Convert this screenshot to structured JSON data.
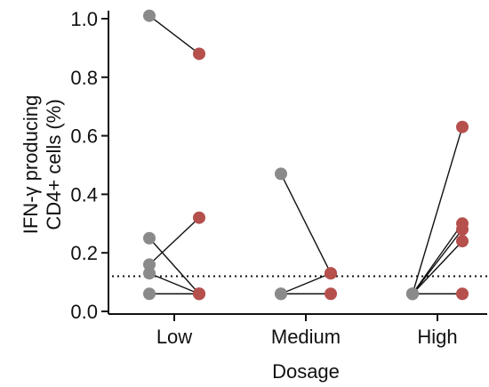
{
  "chart_data": {
    "type": "scatter",
    "subtype": "paired-dot-plot",
    "xlabel": "Dosage",
    "ylabel_lines": [
      "IFN-γ producing",
      "CD4+ cells (%)"
    ],
    "categories": [
      "Low",
      "Medium",
      "High"
    ],
    "ylim": [
      0.0,
      1.0
    ],
    "yticks": [
      "0.0",
      "0.2",
      "0.4",
      "0.6",
      "0.8",
      "1.0"
    ],
    "threshold": 0.12,
    "threshold_style": "dotted",
    "grid": false,
    "colors": {
      "before": "#8a8a8a",
      "after": "#b5504d",
      "line": "#111111"
    },
    "groups": [
      {
        "category": "Low",
        "pairs": [
          {
            "before": 1.01,
            "after": 0.88
          },
          {
            "before": 0.25,
            "after": 0.06
          },
          {
            "before": 0.16,
            "after": 0.32
          },
          {
            "before": 0.13,
            "after": 0.06
          },
          {
            "before": 0.06,
            "after": 0.06
          }
        ]
      },
      {
        "category": "Medium",
        "pairs": [
          {
            "before": 0.47,
            "after": 0.13
          },
          {
            "before": 0.06,
            "after": 0.13
          },
          {
            "before": 0.06,
            "after": 0.06
          }
        ]
      },
      {
        "category": "High",
        "pairs": [
          {
            "before": 0.06,
            "after": 0.63
          },
          {
            "before": 0.06,
            "after": 0.3
          },
          {
            "before": 0.06,
            "after": 0.28
          },
          {
            "before": 0.06,
            "after": 0.24
          },
          {
            "before": 0.06,
            "after": 0.06
          }
        ]
      }
    ]
  }
}
